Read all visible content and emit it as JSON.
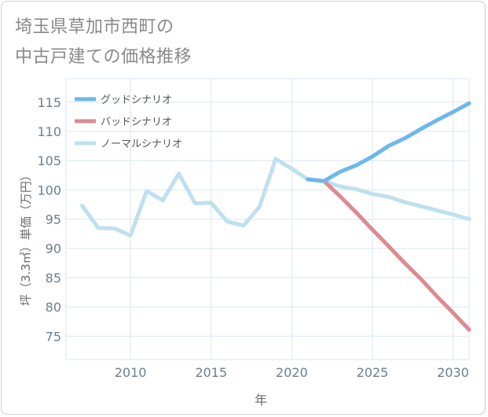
{
  "chart_data": {
    "type": "line",
    "title": [
      "埼玉県草加市西町の",
      "中古戸建ての価格推移"
    ],
    "xlabel": "年",
    "ylabel": "坪（3.3㎡）単価（万円）",
    "xlim": [
      2006,
      2031
    ],
    "ylim": [
      71,
      119
    ],
    "xticks": [
      2010,
      2015,
      2020,
      2025,
      2030
    ],
    "yticks": [
      75,
      80,
      85,
      90,
      95,
      100,
      105,
      110,
      115
    ],
    "grid": true,
    "legend": "top-left",
    "series": [
      {
        "name": "グッドシナリオ",
        "color": "#6cb8ec",
        "x": [
          2021,
          2022,
          2023,
          2024,
          2025,
          2026,
          2027,
          2028,
          2029,
          2030,
          2031
        ],
        "y": [
          101.8,
          101.5,
          103.1,
          104.2,
          105.7,
          107.5,
          108.8,
          110.4,
          111.9,
          113.3,
          114.8
        ]
      },
      {
        "name": "バッドシナリオ",
        "color": "#dd8a92",
        "x": [
          2021,
          2022,
          2023,
          2024,
          2025,
          2026,
          2027,
          2028,
          2029,
          2030,
          2031
        ],
        "y": [
          101.8,
          101.5,
          98.9,
          96.1,
          93.2,
          90.4,
          87.5,
          84.8,
          81.8,
          79.0,
          76.1
        ]
      },
      {
        "name": "ノーマルシナリオ",
        "color": "#bfe0ee",
        "x": [
          2007,
          2008,
          2009,
          2010,
          2011,
          2012,
          2013,
          2014,
          2015,
          2016,
          2017,
          2018,
          2019,
          2020,
          2021,
          2022,
          2023,
          2024,
          2025,
          2026,
          2027,
          2028,
          2029,
          2030,
          2031
        ],
        "y": [
          97.3,
          93.5,
          93.4,
          92.2,
          99.8,
          98.2,
          102.8,
          97.7,
          97.8,
          94.6,
          93.9,
          97.1,
          105.3,
          103.6,
          101.8,
          101.5,
          100.6,
          100.1,
          99.3,
          98.8,
          97.9,
          97.2,
          96.5,
          95.8,
          95.0
        ]
      }
    ]
  }
}
